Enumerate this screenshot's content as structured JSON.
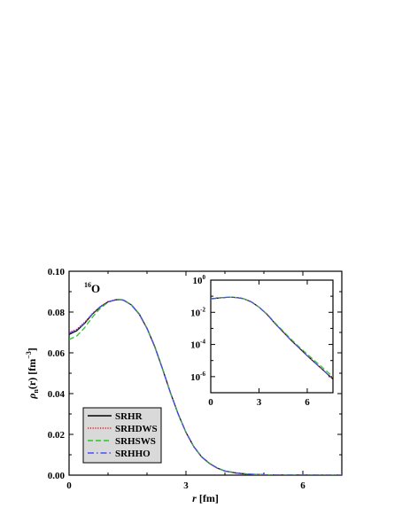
{
  "chart_data": [
    {
      "type": "line",
      "annotation": {
        "mass": "16",
        "element": "O"
      },
      "xlabel": {
        "symbol": "r",
        "unit": "[fm]"
      },
      "ylabel": {
        "symbol": "ρ",
        "subscript": "n",
        "arg": "(r)",
        "unit": "[fm",
        "unit_exp": "−3",
        "unit_end": "]"
      },
      "xlim": [
        0,
        7.0
      ],
      "ylim": [
        0,
        0.1
      ],
      "xticks": [
        "0",
        "3",
        "6"
      ],
      "yticks": [
        "0.00",
        "0.02",
        "0.04",
        "0.06",
        "0.08",
        "0.10"
      ],
      "legend_position": "bottom-left",
      "series": [
        {
          "name": "SRHR",
          "color": "#000000",
          "style": "solid",
          "points": [
            [
              0,
              0.069
            ],
            [
              0.2,
              0.0709
            ],
            [
              0.4,
              0.0745
            ],
            [
              0.6,
              0.079
            ],
            [
              0.8,
              0.0825
            ],
            [
              1.0,
              0.085
            ],
            [
              1.2,
              0.086
            ],
            [
              1.3,
              0.0861
            ],
            [
              1.4,
              0.0858
            ],
            [
              1.6,
              0.0835
            ],
            [
              1.8,
              0.079
            ],
            [
              2.0,
              0.072
            ],
            [
              2.2,
              0.063
            ],
            [
              2.4,
              0.052
            ],
            [
              2.6,
              0.0405
            ],
            [
              2.8,
              0.03
            ],
            [
              3.0,
              0.021
            ],
            [
              3.2,
              0.014
            ],
            [
              3.4,
              0.009
            ],
            [
              3.6,
              0.0058
            ],
            [
              3.8,
              0.0035
            ],
            [
              4.0,
              0.002
            ],
            [
              4.3,
              0.001
            ],
            [
              4.6,
              0.0005
            ],
            [
              5.0,
              0.0002
            ],
            [
              5.5,
              5e-05
            ],
            [
              6.0,
              2e-05
            ],
            [
              7.0,
              0.0
            ]
          ]
        },
        {
          "name": "SRHDWS",
          "color": "#e8141c",
          "style": "dotted",
          "points": [
            [
              0,
              0.07
            ],
            [
              0.2,
              0.0716
            ],
            [
              0.4,
              0.075
            ],
            [
              0.6,
              0.0793
            ],
            [
              0.8,
              0.0827
            ],
            [
              1.0,
              0.0851
            ],
            [
              1.2,
              0.086
            ],
            [
              1.3,
              0.0861
            ],
            [
              1.4,
              0.0858
            ],
            [
              1.6,
              0.0835
            ],
            [
              1.8,
              0.079
            ],
            [
              2.0,
              0.072
            ],
            [
              2.2,
              0.063
            ],
            [
              2.4,
              0.052
            ],
            [
              2.6,
              0.0405
            ],
            [
              2.8,
              0.03
            ],
            [
              3.0,
              0.021
            ],
            [
              3.2,
              0.014
            ],
            [
              3.4,
              0.009
            ],
            [
              3.6,
              0.0058
            ],
            [
              3.8,
              0.0035
            ],
            [
              4.0,
              0.002
            ],
            [
              4.3,
              0.001
            ],
            [
              4.6,
              0.0005
            ],
            [
              5.0,
              0.0002
            ],
            [
              5.5,
              5e-05
            ],
            [
              6.0,
              2e-05
            ],
            [
              7.0,
              0.0
            ]
          ]
        },
        {
          "name": "SRHSWS",
          "color": "#22cc22",
          "style": "dashed",
          "points": [
            [
              0,
              0.0665
            ],
            [
              0.2,
              0.0683
            ],
            [
              0.4,
              0.0723
            ],
            [
              0.6,
              0.0775
            ],
            [
              0.8,
              0.0818
            ],
            [
              1.0,
              0.0848
            ],
            [
              1.2,
              0.0861
            ],
            [
              1.3,
              0.0862
            ],
            [
              1.4,
              0.0859
            ],
            [
              1.6,
              0.0836
            ],
            [
              1.8,
              0.0792
            ],
            [
              2.0,
              0.0722
            ],
            [
              2.2,
              0.0632
            ],
            [
              2.4,
              0.0522
            ],
            [
              2.6,
              0.0406
            ],
            [
              2.8,
              0.0301
            ],
            [
              3.0,
              0.0211
            ],
            [
              3.2,
              0.0141
            ],
            [
              3.4,
              0.0091
            ],
            [
              3.6,
              0.0059
            ],
            [
              3.8,
              0.0036
            ],
            [
              4.0,
              0.0021
            ],
            [
              4.3,
              0.0011
            ],
            [
              4.6,
              0.0005
            ],
            [
              5.0,
              0.0002
            ],
            [
              5.5,
              5e-05
            ],
            [
              6.0,
              2e-05
            ],
            [
              7.0,
              0.0
            ]
          ]
        },
        {
          "name": "SRHHO",
          "color": "#4a4aff",
          "style": "dashdot",
          "points": [
            [
              0,
              0.0695
            ],
            [
              0.2,
              0.0712
            ],
            [
              0.4,
              0.0747
            ],
            [
              0.6,
              0.0791
            ],
            [
              0.8,
              0.0826
            ],
            [
              1.0,
              0.085
            ],
            [
              1.2,
              0.086
            ],
            [
              1.3,
              0.0861
            ],
            [
              1.4,
              0.0858
            ],
            [
              1.6,
              0.0835
            ],
            [
              1.8,
              0.079
            ],
            [
              2.0,
              0.072
            ],
            [
              2.2,
              0.063
            ],
            [
              2.4,
              0.052
            ],
            [
              2.6,
              0.0405
            ],
            [
              2.8,
              0.03
            ],
            [
              3.0,
              0.021
            ],
            [
              3.2,
              0.014
            ],
            [
              3.4,
              0.009
            ],
            [
              3.6,
              0.0058
            ],
            [
              3.8,
              0.0035
            ],
            [
              4.0,
              0.002
            ],
            [
              4.3,
              0.001
            ],
            [
              4.6,
              0.0005
            ],
            [
              5.0,
              0.0002
            ],
            [
              5.5,
              5e-05
            ],
            [
              6.0,
              2e-05
            ],
            [
              7.0,
              0.0
            ]
          ]
        }
      ]
    },
    {
      "type": "line",
      "inset": true,
      "xlim": [
        0,
        7.6
      ],
      "ylim": [
        1e-07,
        1
      ],
      "yscale": "log",
      "xticks": [
        "0",
        "3",
        "6"
      ],
      "yticks": [
        {
          "base": "10",
          "exp": "0"
        },
        {
          "base": "10",
          "exp": "-2"
        },
        {
          "base": "10",
          "exp": "-4"
        },
        {
          "base": "10",
          "exp": "-6"
        }
      ],
      "series": [
        {
          "name": "SRHR",
          "color": "#000000",
          "style": "solid",
          "points": [
            [
              0,
              0.069
            ],
            [
              0.5,
              0.078
            ],
            [
              1.0,
              0.085
            ],
            [
              1.3,
              0.086
            ],
            [
              1.6,
              0.083
            ],
            [
              2.0,
              0.072
            ],
            [
              2.5,
              0.046
            ],
            [
              3.0,
              0.021
            ],
            [
              3.5,
              0.0075
            ],
            [
              4.0,
              0.002
            ],
            [
              4.5,
              0.0006
            ],
            [
              5.0,
              0.00018
            ],
            [
              5.5,
              6e-05
            ],
            [
              6.0,
              2e-05
            ],
            [
              6.5,
              7e-06
            ],
            [
              7.0,
              2.5e-06
            ],
            [
              7.6,
              7e-07
            ]
          ]
        },
        {
          "name": "SRHDWS",
          "color": "#e8141c",
          "style": "dotted",
          "points": [
            [
              0,
              0.07
            ],
            [
              0.5,
              0.079
            ],
            [
              1.0,
              0.085
            ],
            [
              1.3,
              0.086
            ],
            [
              1.6,
              0.083
            ],
            [
              2.0,
              0.072
            ],
            [
              2.5,
              0.046
            ],
            [
              3.0,
              0.021
            ],
            [
              3.5,
              0.0075
            ],
            [
              4.0,
              0.002
            ],
            [
              4.5,
              0.0006
            ],
            [
              5.0,
              0.00018
            ],
            [
              5.5,
              6e-05
            ],
            [
              6.0,
              2e-05
            ],
            [
              6.5,
              7e-06
            ],
            [
              7.0,
              2.5e-06
            ],
            [
              7.6,
              7e-07
            ]
          ]
        },
        {
          "name": "SRHSWS",
          "color": "#22cc22",
          "style": "dashed",
          "points": [
            [
              0,
              0.0665
            ],
            [
              0.5,
              0.077
            ],
            [
              1.0,
              0.085
            ],
            [
              1.3,
              0.086
            ],
            [
              1.6,
              0.083
            ],
            [
              2.0,
              0.072
            ],
            [
              2.5,
              0.046
            ],
            [
              3.0,
              0.021
            ],
            [
              3.5,
              0.0078
            ],
            [
              4.0,
              0.0022
            ],
            [
              4.5,
              0.00068
            ],
            [
              5.0,
              0.00021
            ],
            [
              5.5,
              7e-05
            ],
            [
              6.0,
              2.5e-05
            ],
            [
              6.5,
              9e-06
            ],
            [
              7.0,
              3.3e-06
            ],
            [
              7.6,
              1e-06
            ]
          ]
        },
        {
          "name": "SRHHO",
          "color": "#4a4aff",
          "style": "dashdot",
          "points": [
            [
              0,
              0.0695
            ],
            [
              0.5,
              0.078
            ],
            [
              1.0,
              0.085
            ],
            [
              1.3,
              0.086
            ],
            [
              1.6,
              0.083
            ],
            [
              2.0,
              0.072
            ],
            [
              2.5,
              0.046
            ],
            [
              3.0,
              0.021
            ],
            [
              3.5,
              0.0075
            ],
            [
              4.0,
              0.002
            ],
            [
              4.5,
              0.0006
            ],
            [
              5.0,
              0.00018
            ],
            [
              5.5,
              6e-05
            ],
            [
              6.0,
              2e-05
            ],
            [
              6.5,
              7e-06
            ],
            [
              7.0,
              2.5e-06
            ],
            [
              7.6,
              7e-07
            ]
          ]
        }
      ]
    }
  ]
}
